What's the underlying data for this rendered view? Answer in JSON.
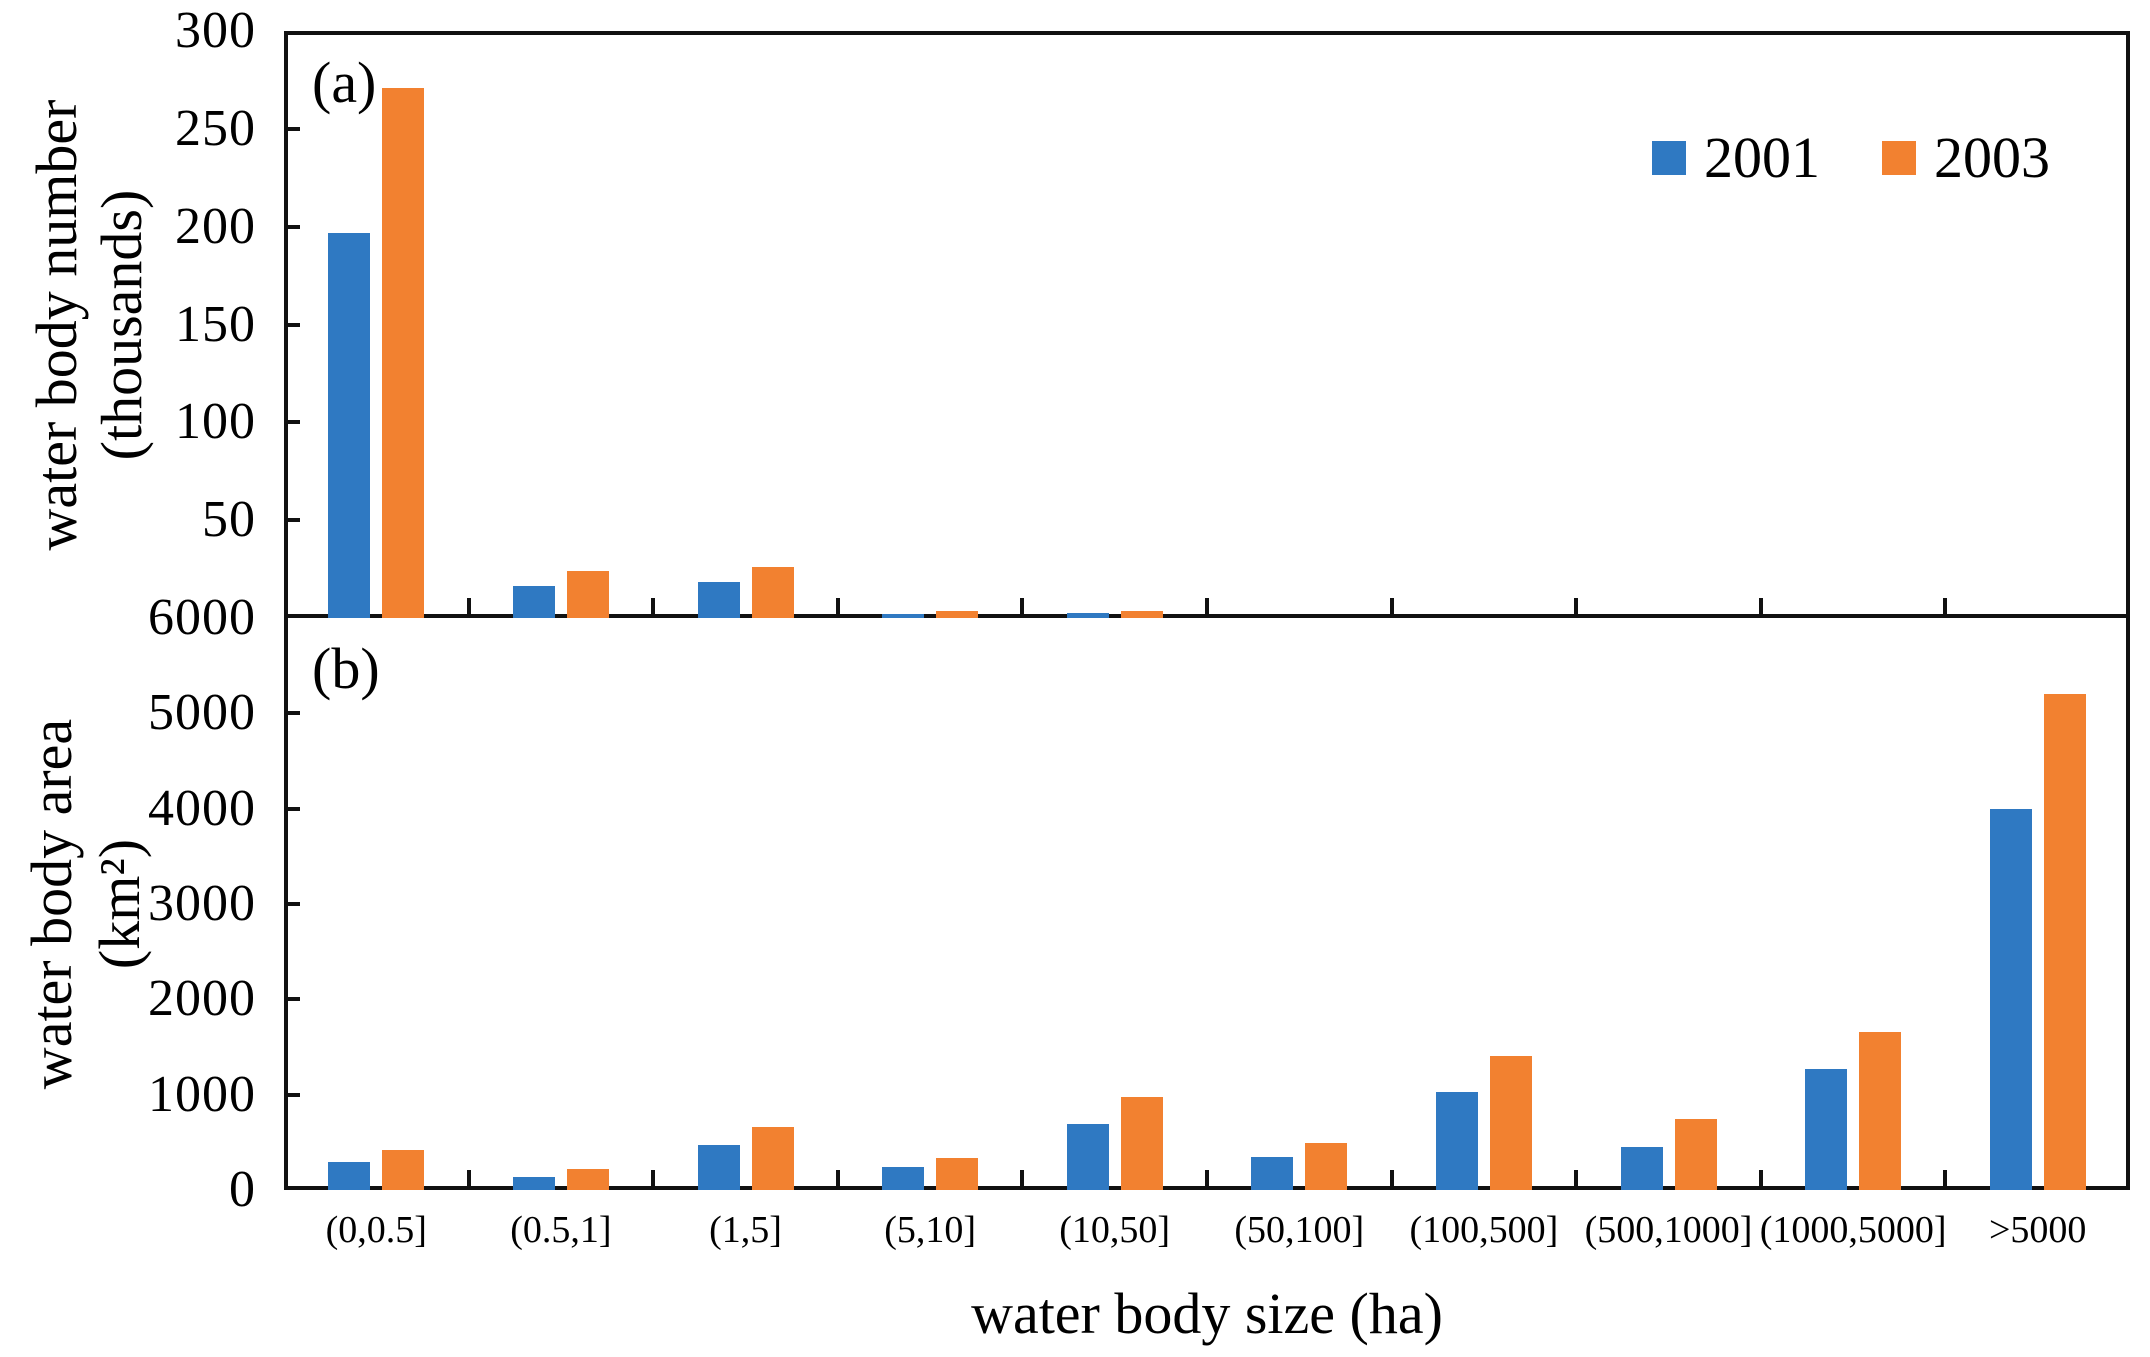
{
  "figure": {
    "panel_a_label": "(a)",
    "panel_b_label": "(b)",
    "xlabel": "water body size (ha)",
    "colors": {
      "series_2001": "#2F79C2",
      "series_2003": "#F28130",
      "axis": "#111111"
    },
    "legend": {
      "position": "top-right",
      "items": [
        {
          "label": "2001",
          "color": "#2F79C2"
        },
        {
          "label": "2003",
          "color": "#F28130"
        }
      ]
    }
  },
  "chart_data": [
    {
      "type": "bar",
      "panel": "(a)",
      "title": "",
      "ylabel": "water body number (thousands)",
      "ylabel_line1": "water body number",
      "ylabel_line2": "(thousands)",
      "xlabel": "water body size (ha)",
      "ylim": [
        0,
        300
      ],
      "yticks": [
        300,
        250,
        200,
        150,
        100,
        50
      ],
      "grid": false,
      "legend_position": "top-right",
      "categories": [
        "(0,0.5]",
        "(0.5,1]",
        "(1,5]",
        "(5,10]",
        "(10,50]",
        "(50,100]",
        "(100,500]",
        "(500,1000]",
        "(1000,5000]",
        ">5000"
      ],
      "series": [
        {
          "name": "2001",
          "color": "#2F79C2",
          "values": [
            197,
            16.5,
            18.5,
            2.2,
            2.3,
            0,
            0,
            0,
            0,
            0
          ]
        },
        {
          "name": "2003",
          "color": "#F28130",
          "values": [
            271,
            24,
            26,
            3.5,
            3.8,
            0,
            0,
            0,
            0,
            0
          ]
        }
      ]
    },
    {
      "type": "bar",
      "panel": "(b)",
      "title": "",
      "ylabel": "water body area (km²)",
      "ylabel_line1": "water body area",
      "ylabel_line2": "(km²)",
      "xlabel": "water body size (ha)",
      "ylim": [
        0,
        6000
      ],
      "yticks": [
        6000,
        5000,
        4000,
        3000,
        2000,
        1000,
        0
      ],
      "grid": false,
      "categories": [
        "(0,0.5]",
        "(0.5,1]",
        "(1,5]",
        "(5,10]",
        "(10,50]",
        "(50,100]",
        "(100,500]",
        "(500,1000]",
        "(1000,5000]",
        ">5000"
      ],
      "series": [
        {
          "name": "2001",
          "color": "#2F79C2",
          "values": [
            290,
            140,
            470,
            240,
            690,
            345,
            1030,
            450,
            1270,
            4000
          ]
        },
        {
          "name": "2003",
          "color": "#F28130",
          "values": [
            420,
            220,
            660,
            335,
            980,
            490,
            1410,
            750,
            1660,
            5200
          ]
        }
      ]
    }
  ]
}
